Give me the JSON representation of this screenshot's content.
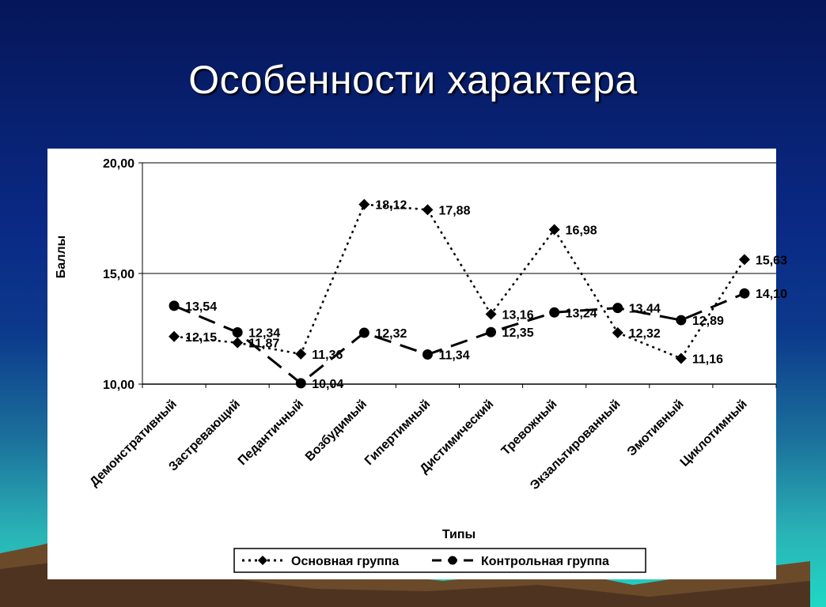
{
  "slide": {
    "title": "Особенности характера"
  },
  "chart_data": {
    "type": "line",
    "title": "",
    "xlabel": "Типы",
    "ylabel": "Баллы",
    "ylim": [
      10,
      20
    ],
    "yticks": [
      "10,00",
      "15,00",
      "20,00"
    ],
    "ytick_values": [
      10,
      15,
      20
    ],
    "grid": "horizontal major gridlines",
    "legend_position": "bottom",
    "categories": [
      "Демонстративный",
      "Застревающий",
      "Педантичный",
      "Возбудимый",
      "Гипертимный",
      "Дистимический",
      "Тревожный",
      "Экзальтированный",
      "Эмотивный",
      "Циклотимный"
    ],
    "series": [
      {
        "name": "Основная группа",
        "marker": "diamond",
        "line_style": "dotted",
        "color": "#000000",
        "values": [
          12.15,
          11.87,
          11.36,
          18.12,
          17.88,
          13.16,
          16.98,
          12.32,
          11.16,
          15.63
        ],
        "labels": [
          "12,15",
          "11,87",
          "11,36",
          "18,12",
          "17,88",
          "13,16",
          "16,98",
          "12,32",
          "11,16",
          "15,63"
        ]
      },
      {
        "name": "Контрольная группа",
        "marker": "circle",
        "line_style": "dashed",
        "color": "#000000",
        "values": [
          13.54,
          12.34,
          10.04,
          12.32,
          11.34,
          12.35,
          13.24,
          13.44,
          12.89,
          14.1
        ],
        "labels": [
          "13,54",
          "12,34",
          "10,04",
          "12,32",
          "11,34",
          "12,35",
          "13,24",
          "13,44",
          "12,89",
          "14,10"
        ]
      }
    ]
  }
}
